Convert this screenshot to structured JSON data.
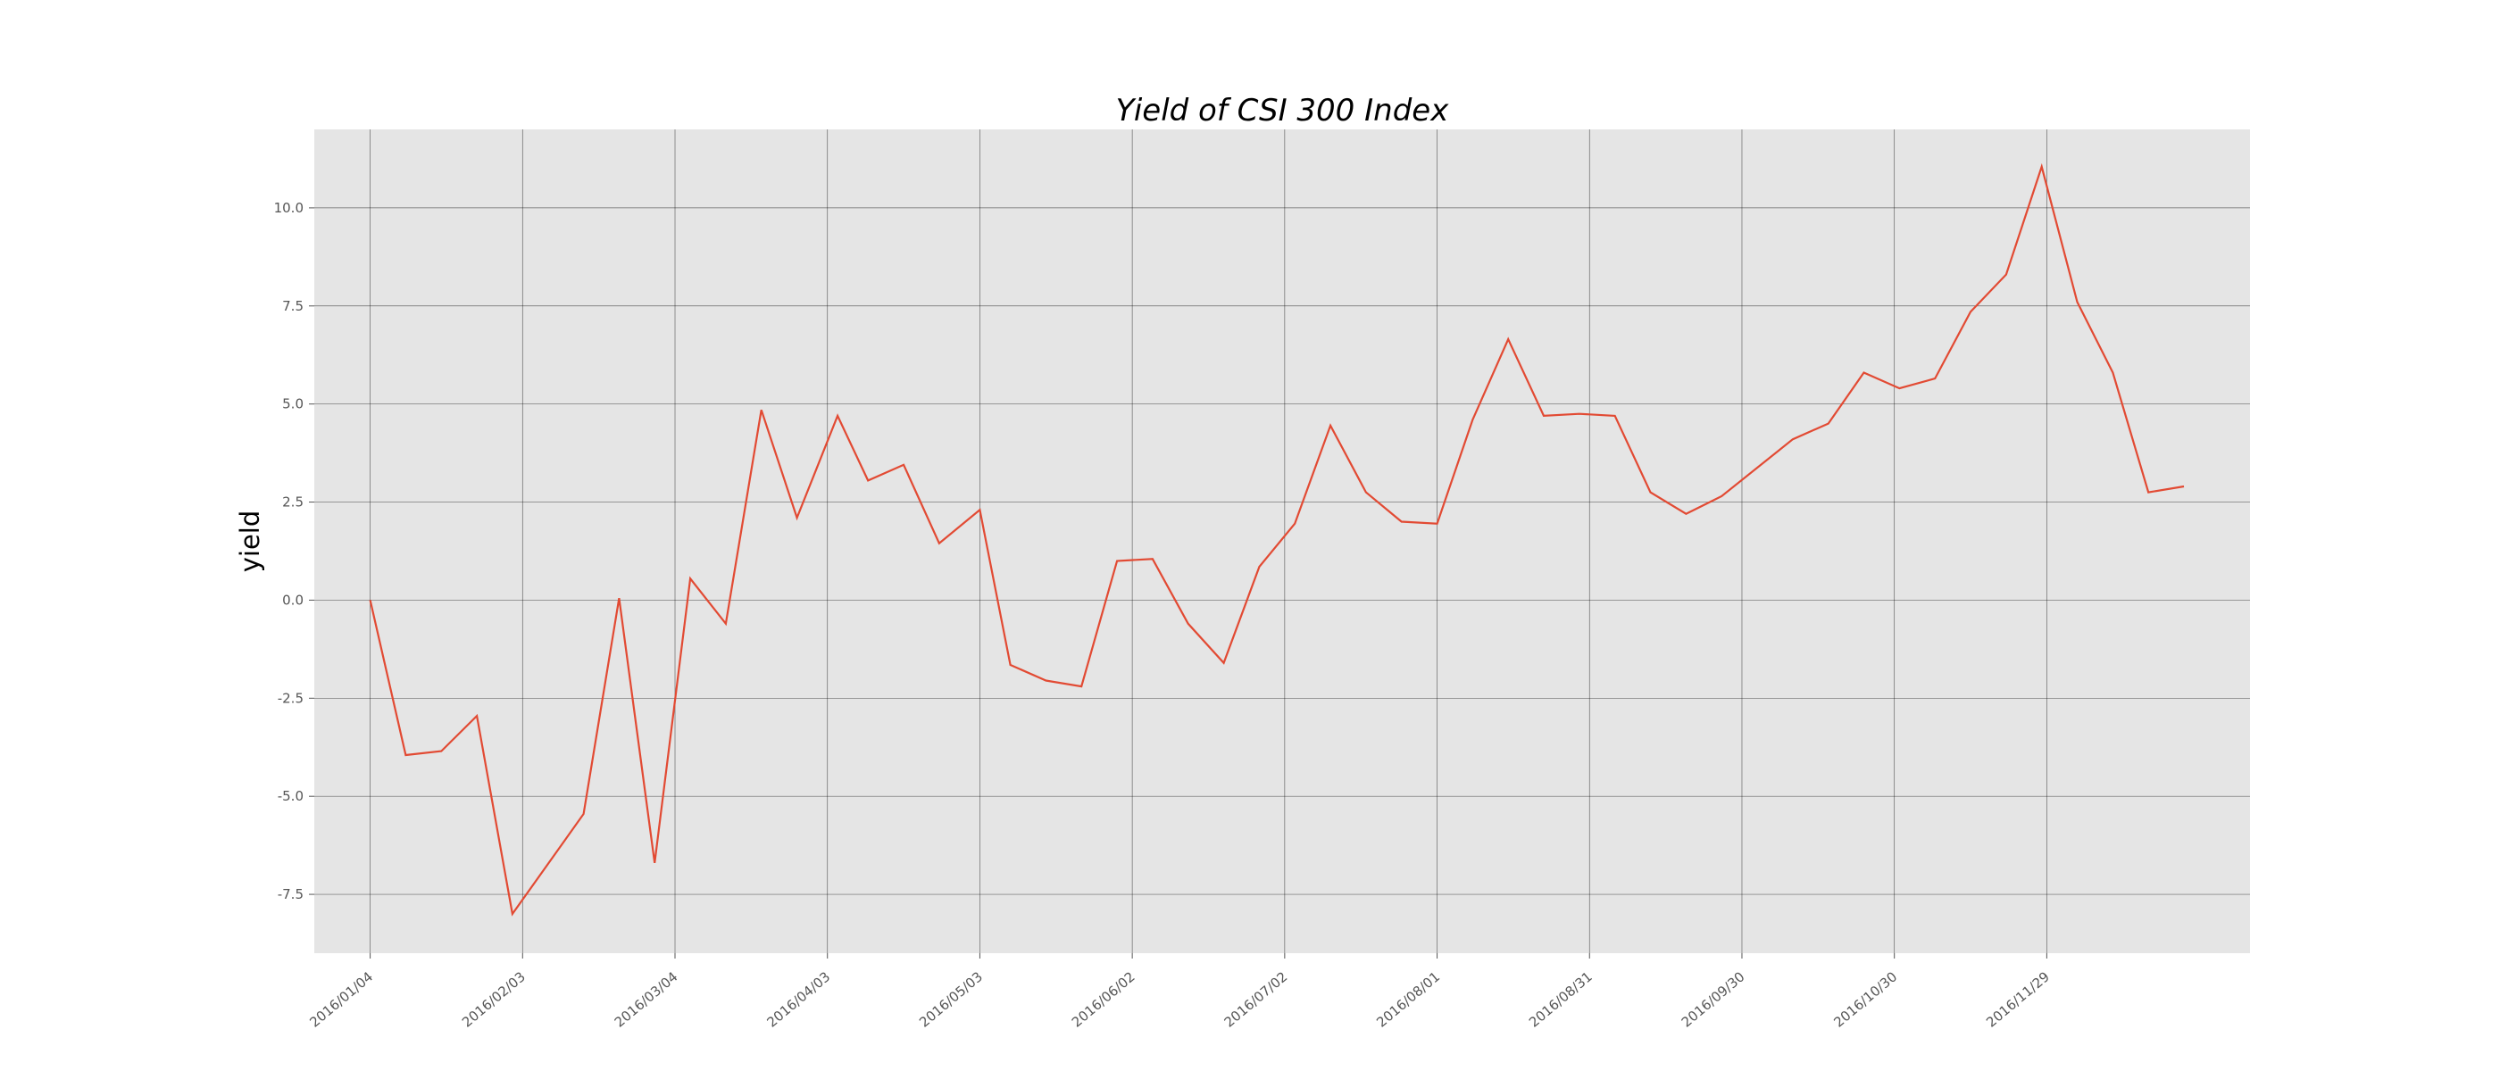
{
  "chart_data": {
    "type": "line",
    "title": "Yield of CSI 300 Index",
    "xlabel": "",
    "ylabel": "yield",
    "xlim": [
      "2015-12-24",
      "2017-01-08"
    ],
    "ylim": [
      -9,
      12
    ],
    "grid": true,
    "colors": {
      "background": "#E5E5E5",
      "line": "#E24A33",
      "grid": "#000000"
    },
    "x_ticks": [
      "2016/01/04",
      "2016/02/03",
      "2016/03/04",
      "2016/04/03",
      "2016/05/03",
      "2016/06/02",
      "2016/07/02",
      "2016/08/01",
      "2016/08/31",
      "2016/09/30",
      "2016/10/30",
      "2016/11/29"
    ],
    "y_ticks": [
      "-7.5",
      "-5.0",
      "-2.5",
      "0.0",
      "2.5",
      "5.0",
      "7.5",
      "10.0"
    ],
    "series": [
      {
        "x": [
          "2016-01-04",
          "2016-01-11",
          "2016-01-18",
          "2016-01-25",
          "2016-02-01",
          "2016-02-15",
          "2016-02-22",
          "2016-02-29",
          "2016-03-07",
          "2016-03-14",
          "2016-03-21",
          "2016-03-28",
          "2016-04-05",
          "2016-04-11",
          "2016-04-18",
          "2016-04-25",
          "2016-05-03",
          "2016-05-09",
          "2016-05-16",
          "2016-05-23",
          "2016-05-30",
          "2016-06-06",
          "2016-06-13",
          "2016-06-20",
          "2016-06-27",
          "2016-07-04",
          "2016-07-11",
          "2016-07-18",
          "2016-07-25",
          "2016-08-01",
          "2016-08-08",
          "2016-08-15",
          "2016-08-22",
          "2016-08-29",
          "2016-09-05",
          "2016-09-12",
          "2016-09-19",
          "2016-09-26",
          "2016-10-10",
          "2016-10-17",
          "2016-10-24",
          "2016-10-31",
          "2016-11-07",
          "2016-11-14",
          "2016-11-21",
          "2016-11-28",
          "2016-12-05",
          "2016-12-12",
          "2016-12-19",
          "2016-12-26"
        ],
        "y": [
          0.0,
          -3.95,
          -3.85,
          -2.95,
          -8.0,
          -5.45,
          0.05,
          -6.7,
          0.55,
          -0.6,
          4.85,
          2.1,
          4.7,
          3.05,
          3.45,
          1.45,
          2.3,
          -1.65,
          -2.05,
          -2.2,
          1.0,
          1.05,
          -0.6,
          -1.6,
          0.85,
          1.95,
          4.45,
          2.75,
          2.0,
          1.95,
          4.6,
          6.65,
          4.7,
          4.75,
          4.7,
          2.75,
          2.2,
          2.65,
          4.1,
          4.5,
          5.8,
          5.4,
          5.65,
          7.35,
          8.3,
          11.05,
          7.6,
          5.8,
          2.75,
          2.9
        ]
      }
    ]
  }
}
